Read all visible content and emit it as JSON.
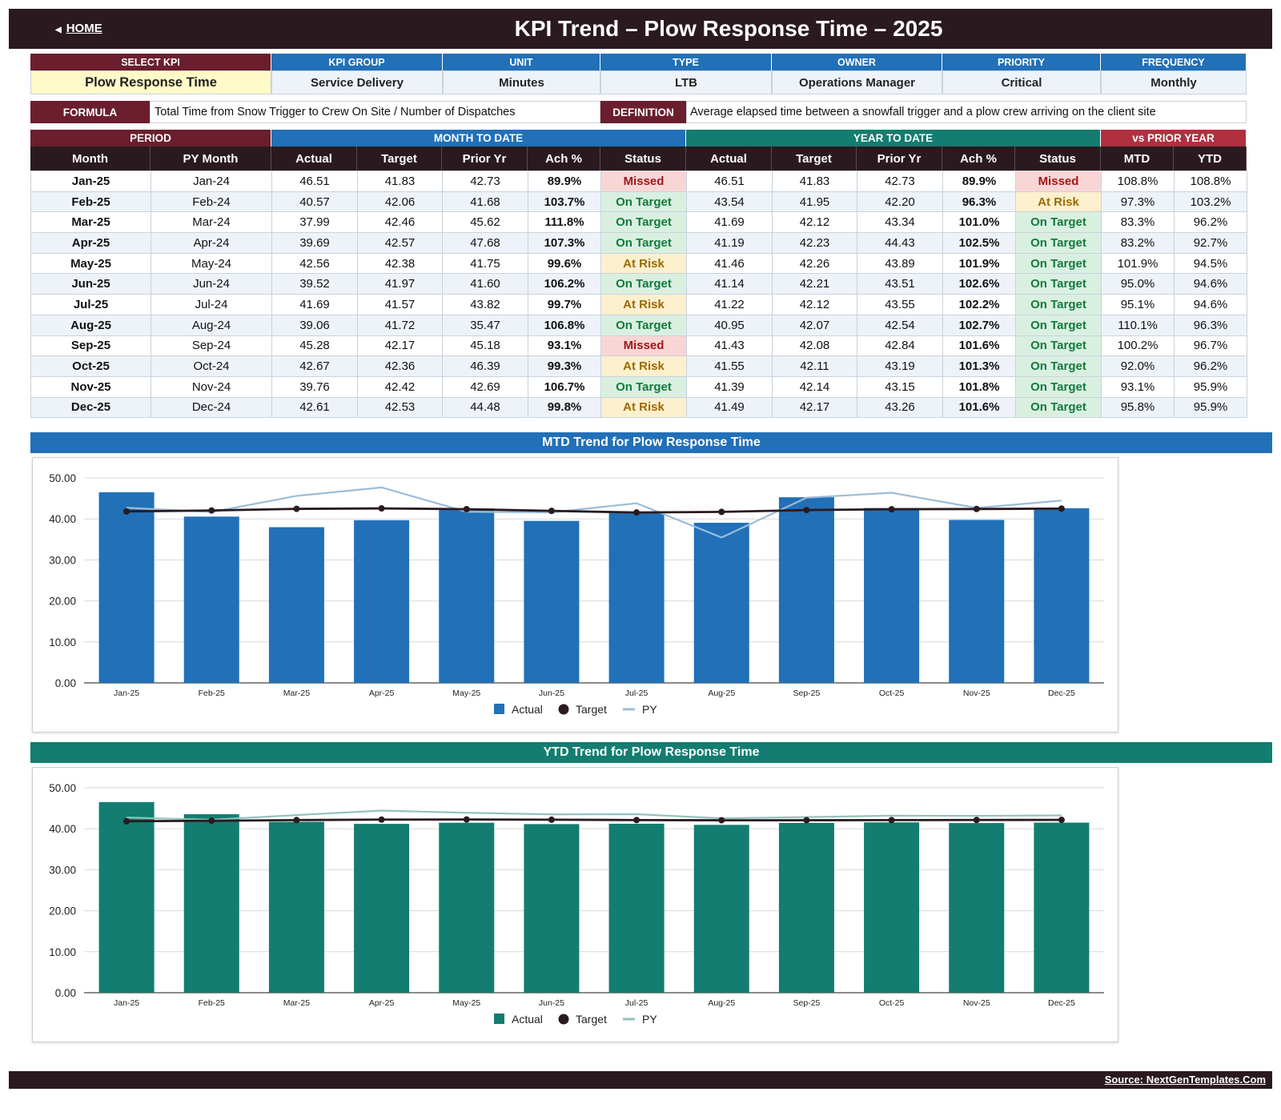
{
  "header": {
    "home_label": "HOME",
    "title": "KPI Trend   –   Plow Response Time   –   2025"
  },
  "info": {
    "labels": [
      "SELECT KPI",
      "KPI GROUP",
      "UNIT",
      "TYPE",
      "OWNER",
      "PRIORITY",
      "FREQUENCY"
    ],
    "values": [
      "Plow Response Time",
      "Service Delivery",
      "Minutes",
      "LTB",
      "Operations Manager",
      "Critical",
      "Monthly"
    ]
  },
  "formula": {
    "label": "FORMULA",
    "text": "Total Time from Snow Trigger to Crew On Site / Number of Dispatches"
  },
  "definition": {
    "label": "DEFINITION",
    "text": "Average elapsed time between a snowfall trigger and a plow crew arriving on the client site"
  },
  "table": {
    "groups": {
      "period": "PERIOD",
      "mtd": "MONTH TO DATE",
      "ytd": "YEAR TO DATE",
      "py": "vs PRIOR YEAR"
    },
    "columns": [
      "Month",
      "PY Month",
      "Actual",
      "Target",
      "Prior Yr",
      "Ach %",
      "Status",
      "Actual",
      "Target",
      "Prior Yr",
      "Ach %",
      "Status",
      "MTD",
      "YTD"
    ],
    "rows": [
      [
        "Jan-25",
        "Jan-24",
        "46.51",
        "41.83",
        "42.73",
        "89.9%",
        "Missed",
        "46.51",
        "41.83",
        "42.73",
        "89.9%",
        "Missed",
        "108.8%",
        "108.8%"
      ],
      [
        "Feb-25",
        "Feb-24",
        "40.57",
        "42.06",
        "41.68",
        "103.7%",
        "On Target",
        "43.54",
        "41.95",
        "42.20",
        "96.3%",
        "At Risk",
        "97.3%",
        "103.2%"
      ],
      [
        "Mar-25",
        "Mar-24",
        "37.99",
        "42.46",
        "45.62",
        "111.8%",
        "On Target",
        "41.69",
        "42.12",
        "43.34",
        "101.0%",
        "On Target",
        "83.3%",
        "96.2%"
      ],
      [
        "Apr-25",
        "Apr-24",
        "39.69",
        "42.57",
        "47.68",
        "107.3%",
        "On Target",
        "41.19",
        "42.23",
        "44.43",
        "102.5%",
        "On Target",
        "83.2%",
        "92.7%"
      ],
      [
        "May-25",
        "May-24",
        "42.56",
        "42.38",
        "41.75",
        "99.6%",
        "At Risk",
        "41.46",
        "42.26",
        "43.89",
        "101.9%",
        "On Target",
        "101.9%",
        "94.5%"
      ],
      [
        "Jun-25",
        "Jun-24",
        "39.52",
        "41.97",
        "41.60",
        "106.2%",
        "On Target",
        "41.14",
        "42.21",
        "43.51",
        "102.6%",
        "On Target",
        "95.0%",
        "94.6%"
      ],
      [
        "Jul-25",
        "Jul-24",
        "41.69",
        "41.57",
        "43.82",
        "99.7%",
        "At Risk",
        "41.22",
        "42.12",
        "43.55",
        "102.2%",
        "On Target",
        "95.1%",
        "94.6%"
      ],
      [
        "Aug-25",
        "Aug-24",
        "39.06",
        "41.72",
        "35.47",
        "106.8%",
        "On Target",
        "40.95",
        "42.07",
        "42.54",
        "102.7%",
        "On Target",
        "110.1%",
        "96.3%"
      ],
      [
        "Sep-25",
        "Sep-24",
        "45.28",
        "42.17",
        "45.18",
        "93.1%",
        "Missed",
        "41.43",
        "42.08",
        "42.84",
        "101.6%",
        "On Target",
        "100.2%",
        "96.7%"
      ],
      [
        "Oct-25",
        "Oct-24",
        "42.67",
        "42.36",
        "46.39",
        "99.3%",
        "At Risk",
        "41.55",
        "42.11",
        "43.19",
        "101.3%",
        "On Target",
        "92.0%",
        "96.2%"
      ],
      [
        "Nov-25",
        "Nov-24",
        "39.76",
        "42.42",
        "42.69",
        "106.7%",
        "On Target",
        "41.39",
        "42.14",
        "43.15",
        "101.8%",
        "On Target",
        "93.1%",
        "95.9%"
      ],
      [
        "Dec-25",
        "Dec-24",
        "42.61",
        "42.53",
        "44.48",
        "99.8%",
        "At Risk",
        "41.49",
        "42.17",
        "43.26",
        "101.6%",
        "On Target",
        "95.8%",
        "95.9%"
      ]
    ]
  },
  "colors": {
    "maroon": "#6b1e2e",
    "blue": "#2170b8",
    "teal": "#127d70",
    "red": "#b03040",
    "dark": "#2a1a1f"
  },
  "chart_data": [
    {
      "type": "bar",
      "title": "MTD Trend for Plow Response Time",
      "categories": [
        "Jan-25",
        "Feb-25",
        "Mar-25",
        "Apr-25",
        "May-25",
        "Jun-25",
        "Jul-25",
        "Aug-25",
        "Sep-25",
        "Oct-25",
        "Nov-25",
        "Dec-25"
      ],
      "ylim": [
        0,
        50
      ],
      "yticks": [
        "0.00",
        "10.00",
        "20.00",
        "30.00",
        "40.00",
        "50.00"
      ],
      "series": [
        {
          "name": "Actual",
          "kind": "bar",
          "color": "#2170b8",
          "values": [
            46.51,
            40.57,
            37.99,
            39.69,
            42.56,
            39.52,
            41.69,
            39.06,
            45.28,
            42.67,
            39.76,
            42.61
          ]
        },
        {
          "name": "Target",
          "kind": "line-marker",
          "color": "#2a1a1f",
          "values": [
            41.83,
            42.06,
            42.46,
            42.57,
            42.38,
            41.97,
            41.57,
            41.72,
            42.17,
            42.36,
            42.42,
            42.53
          ]
        },
        {
          "name": "PY",
          "kind": "line",
          "color": "#9bbcd9",
          "values": [
            42.73,
            41.68,
            45.62,
            47.68,
            41.75,
            41.6,
            43.82,
            35.47,
            45.18,
            46.39,
            42.69,
            44.48
          ]
        }
      ],
      "grid": true,
      "legend": "bottom"
    },
    {
      "type": "bar",
      "title": "YTD Trend for Plow Response Time",
      "categories": [
        "Jan-25",
        "Feb-25",
        "Mar-25",
        "Apr-25",
        "May-25",
        "Jun-25",
        "Jul-25",
        "Aug-25",
        "Sep-25",
        "Oct-25",
        "Nov-25",
        "Dec-25"
      ],
      "ylim": [
        0,
        50
      ],
      "yticks": [
        "0.00",
        "10.00",
        "20.00",
        "30.00",
        "40.00",
        "50.00"
      ],
      "series": [
        {
          "name": "Actual",
          "kind": "bar",
          "color": "#127d70",
          "values": [
            46.51,
            43.54,
            41.69,
            41.19,
            41.46,
            41.14,
            41.22,
            40.95,
            41.43,
            41.55,
            41.39,
            41.49
          ]
        },
        {
          "name": "Target",
          "kind": "line-marker",
          "color": "#2a1a1f",
          "values": [
            41.83,
            41.95,
            42.12,
            42.23,
            42.26,
            42.21,
            42.12,
            42.07,
            42.08,
            42.11,
            42.14,
            42.17
          ]
        },
        {
          "name": "PY",
          "kind": "line",
          "color": "#94c2bc",
          "values": [
            42.73,
            42.2,
            43.34,
            44.43,
            43.89,
            43.51,
            43.55,
            42.54,
            42.84,
            43.19,
            43.15,
            43.26
          ]
        }
      ],
      "grid": true,
      "legend": "bottom"
    }
  ],
  "footer": {
    "source": "Source: NextGenTemplates.Com"
  }
}
